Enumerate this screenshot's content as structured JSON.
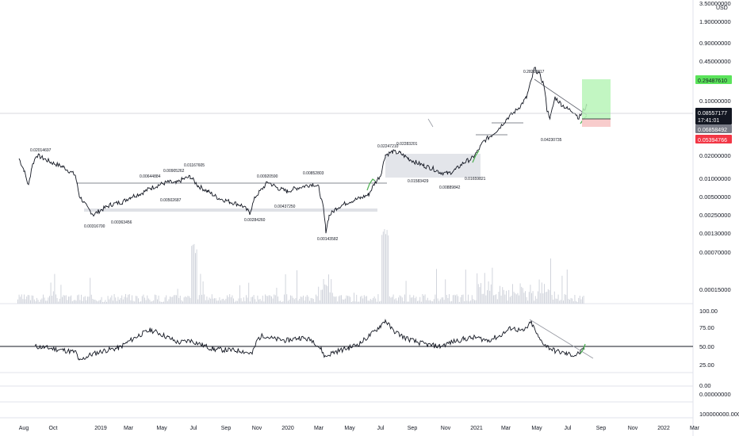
{
  "chart_data": {
    "type": "line",
    "currency": "USD",
    "price_scale": "log",
    "price_ticks": [
      "3.50000000",
      "1.90000000",
      "0.90000000",
      "0.45000000",
      "0.10000000",
      "0.02000000",
      "0.01000000",
      "0.00500000",
      "0.00250000",
      "0.00130000",
      "0.00070000",
      "0.00015000"
    ],
    "x_ticks": [
      "Aug",
      "Oct",
      "2019",
      "Mar",
      "May",
      "Jul",
      "Sep",
      "Nov",
      "2020",
      "Mar",
      "May",
      "Jul",
      "Sep",
      "Nov",
      "2021",
      "Mar",
      "May",
      "Jul",
      "Sep",
      "Nov",
      "2022",
      "Mar"
    ],
    "current_price": {
      "value": "0.08557177",
      "countdown": "17:41:01"
    },
    "right_labels": {
      "target": "0.29487610",
      "entry": "0.06858492",
      "stop": "0.05394766"
    },
    "annotations": [
      "0.02014697",
      "0.00316700",
      "0.00363456",
      "0.00644884",
      "0.00502687",
      "0.00905262",
      "0.01167605",
      "0.00920590",
      "0.00284260",
      "0.00437250",
      "0.00852803",
      "0.00143582",
      "0.02247210",
      "0.02283201",
      "0.01583429",
      "0.00889842",
      "0.01659821",
      "0.28203817",
      "0.04230735"
    ],
    "rsi": {
      "ticks": [
        "100.00",
        "75.00",
        "50.00",
        "25.00"
      ],
      "level": 50
    },
    "pane3_ticks": [
      "0.00"
    ],
    "pane4_ticks": [
      "0.00000000",
      "100000000.00000000"
    ]
  }
}
